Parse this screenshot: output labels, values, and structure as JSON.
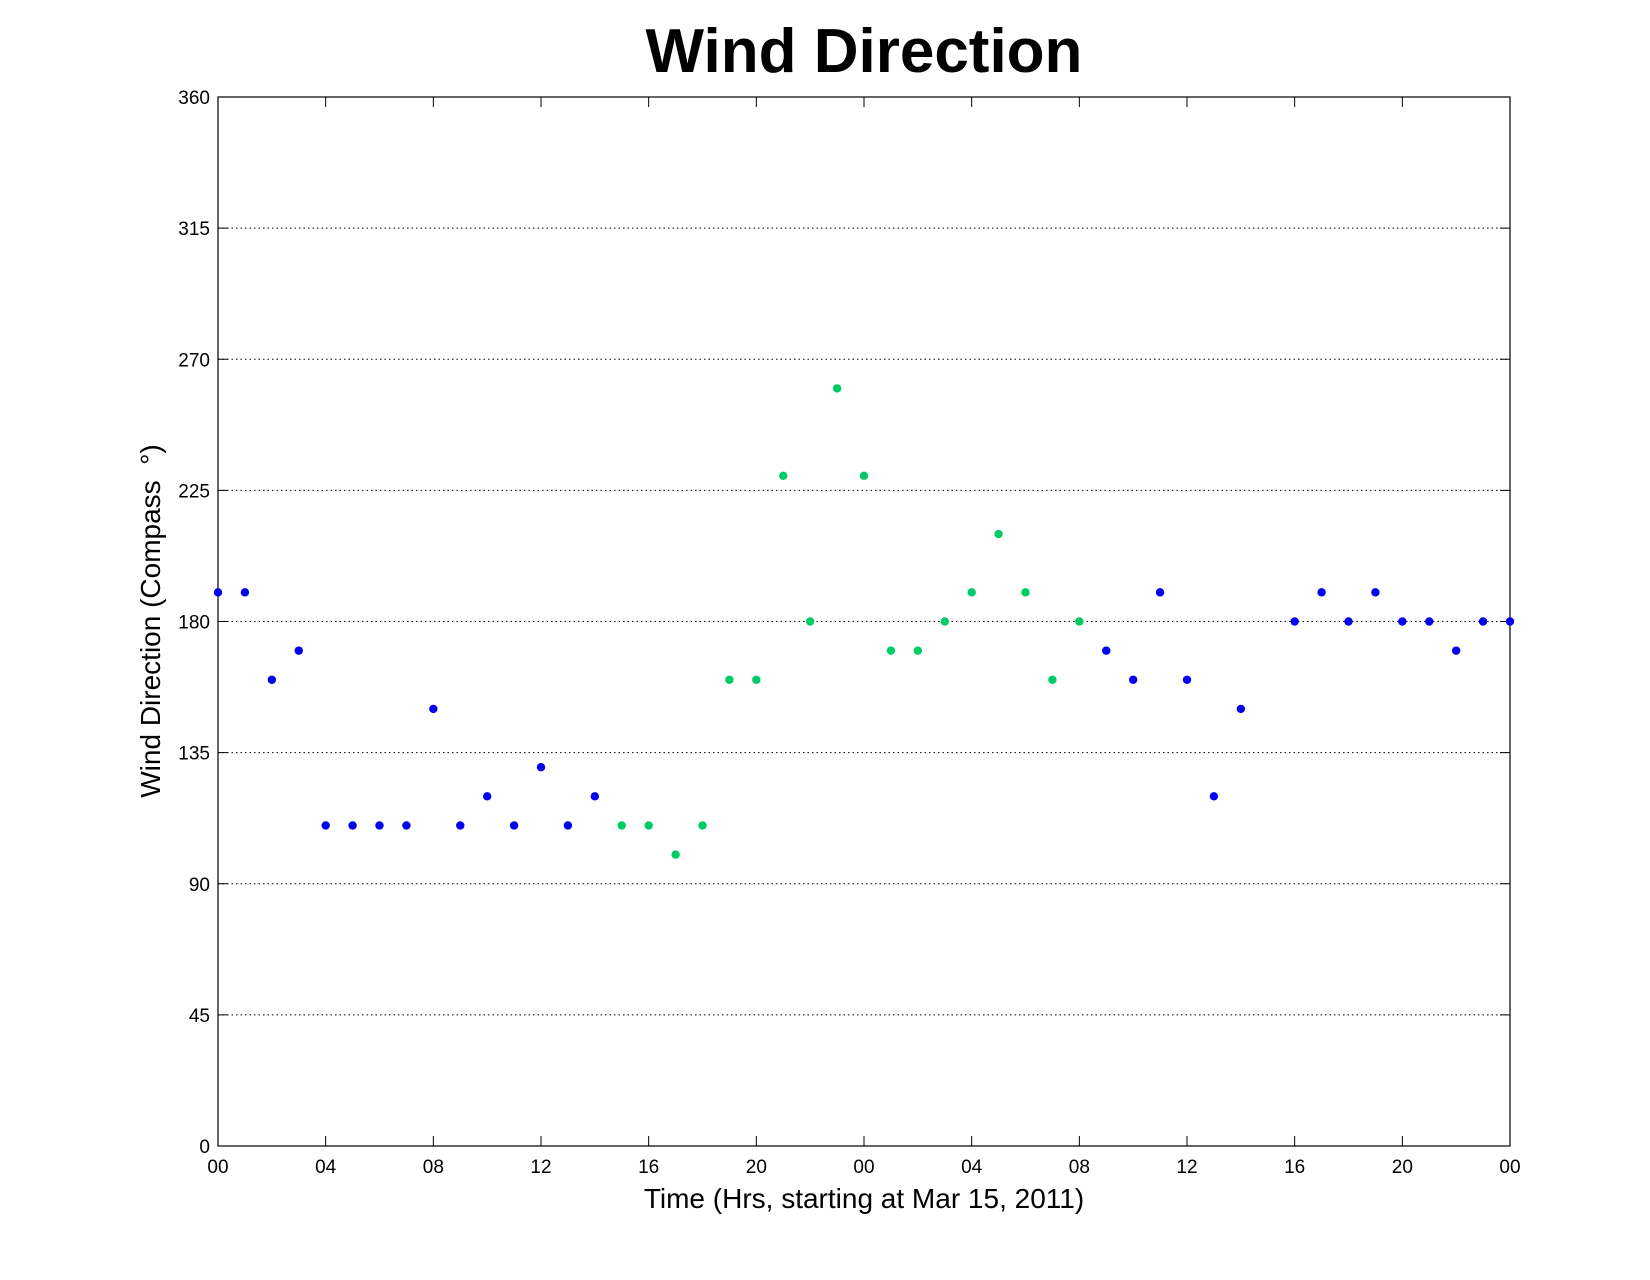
{
  "chart_data": {
    "type": "scatter",
    "title": "Wind Direction",
    "xlabel": "Time (Hrs, starting at Mar 15, 2011)",
    "ylabel": "Wind Direction (Compass  °)",
    "x_unit": "hours",
    "xlim": [
      0,
      48
    ],
    "ylim": [
      0,
      360
    ],
    "x_ticks": [
      {
        "x": 0,
        "label": "00"
      },
      {
        "x": 4,
        "label": "04"
      },
      {
        "x": 8,
        "label": "08"
      },
      {
        "x": 12,
        "label": "12"
      },
      {
        "x": 16,
        "label": "16"
      },
      {
        "x": 20,
        "label": "20"
      },
      {
        "x": 24,
        "label": "00"
      },
      {
        "x": 28,
        "label": "04"
      },
      {
        "x": 32,
        "label": "08"
      },
      {
        "x": 36,
        "label": "12"
      },
      {
        "x": 40,
        "label": "16"
      },
      {
        "x": 44,
        "label": "20"
      },
      {
        "x": 48,
        "label": "00"
      }
    ],
    "y_ticks": [
      0,
      45,
      90,
      135,
      180,
      225,
      270,
      315,
      360
    ],
    "grid": {
      "y": true,
      "x": false,
      "style": "dotted"
    },
    "series": [
      {
        "color": "#0000ee",
        "x": [
          0,
          1,
          2,
          3,
          4,
          5,
          6,
          7,
          8,
          9,
          10,
          11,
          12,
          13,
          14,
          33,
          34,
          35,
          36,
          37,
          38,
          40,
          41,
          42,
          43,
          44,
          45,
          46,
          47,
          48
        ],
        "y": [
          190,
          190,
          160,
          170,
          110,
          110,
          110,
          110,
          150,
          110,
          120,
          110,
          130,
          110,
          120,
          170,
          160,
          190,
          160,
          120,
          150,
          180,
          190,
          180,
          190,
          180,
          180,
          170,
          180,
          180
        ]
      },
      {
        "color": "#00cc66",
        "x": [
          15,
          16,
          17,
          18,
          19,
          20,
          21,
          22,
          23,
          24,
          25,
          26,
          27,
          28,
          29,
          30,
          31,
          32
        ],
        "y": [
          110,
          110,
          100,
          110,
          160,
          160,
          230,
          180,
          260,
          230,
          170,
          170,
          180,
          190,
          210,
          190,
          160,
          180
        ]
      }
    ]
  }
}
